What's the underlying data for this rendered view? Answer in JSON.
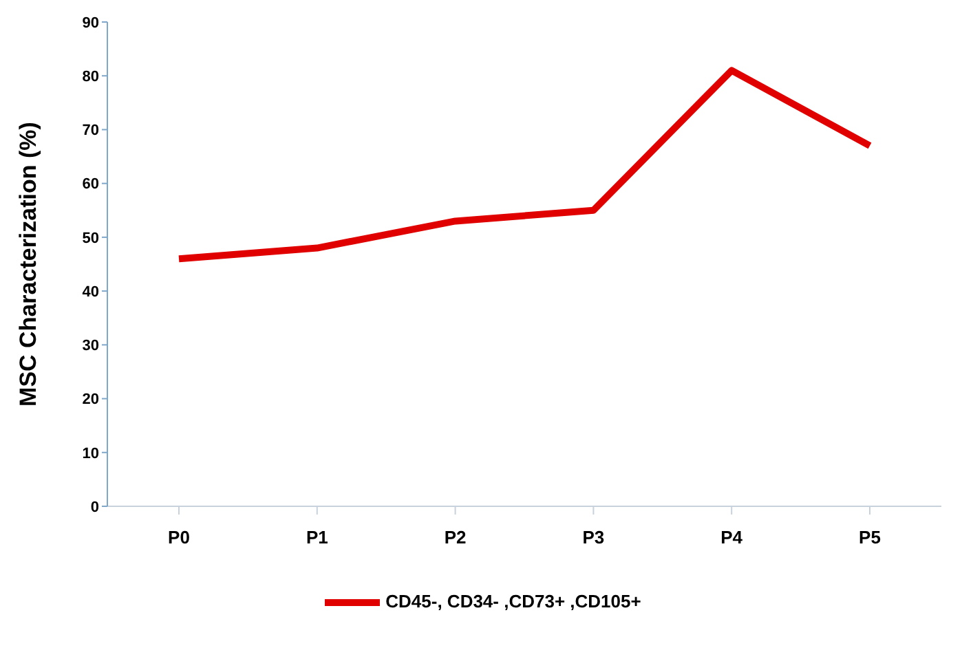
{
  "chart_data": {
    "type": "line",
    "ylabel": "MSC Characterization (%)",
    "categories": [
      "P0",
      "P1",
      "P2",
      "P3",
      "P4",
      "P5"
    ],
    "series": [
      {
        "name": "CD45-, CD34- ,CD73+ ,CD105+",
        "color": "#e00000",
        "values": [
          46,
          48,
          53,
          55,
          81,
          67
        ]
      }
    ],
    "ylim": [
      0,
      90
    ],
    "yticks": [
      0,
      10,
      20,
      30,
      40,
      50,
      60,
      70,
      80,
      90
    ],
    "grid": false,
    "legend": "bottom",
    "marker": "none"
  }
}
